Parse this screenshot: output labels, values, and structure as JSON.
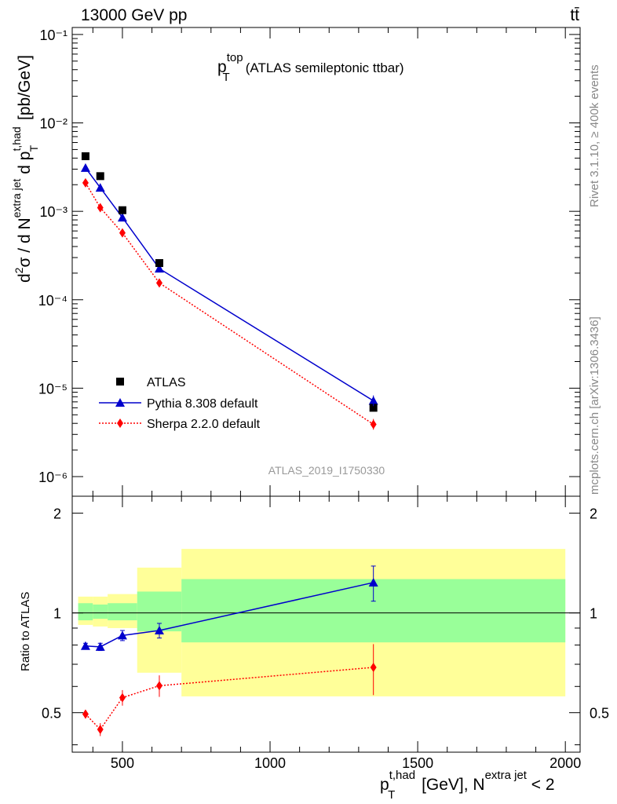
{
  "header": {
    "energy_label": "13000 GeV pp",
    "process_label": "tt̄",
    "rivet_label": "Rivet 3.1.10, ≥ 400k events",
    "mcplots_label": "mcplots.cern.ch [arXiv:1306.3436]"
  },
  "colors": {
    "data": "#000000",
    "pythia": "#0000cc",
    "sherpa": "#ff0000",
    "band_inner": "#99ff99",
    "band_outer": "#ffff99"
  },
  "chart_data": [
    {
      "type": "scatter",
      "panel": "main",
      "title_main": "p",
      "title_sub": "T",
      "title_sup": "top",
      "title_rest": "(ATLAS semileptonic ttbar)",
      "watermark": "ATLAS_2019_I1750330",
      "ylabel": "d²σ / d N^extra jet d p_T^t,had [pb/GeV]",
      "yscale": "log",
      "ylim": [
        6e-07,
        0.12
      ],
      "xlim": [
        330,
        2050
      ],
      "ytick_labels": [
        "10⁻¹",
        "10⁻²",
        "10⁻³",
        "10⁻⁴",
        "10⁻⁵",
        "10⁻⁶"
      ],
      "legend_position": "bottom-left",
      "x": [
        375,
        425,
        500,
        625,
        1350
      ],
      "series": [
        {
          "name": "ATLAS",
          "marker": "square",
          "y": [
            0.0042,
            0.0025,
            0.00103,
            0.00026,
            6e-06
          ]
        },
        {
          "name": "Pythia 8.308 default",
          "marker": "triangle",
          "y": [
            0.0031,
            0.00185,
            0.00085,
            0.000225,
            7.2e-06
          ]
        },
        {
          "name": "Sherpa 2.2.0 default",
          "marker": "diamond",
          "y": [
            0.0021,
            0.0011,
            0.00057,
            0.000155,
            3.9e-06
          ]
        }
      ]
    },
    {
      "type": "scatter",
      "panel": "ratio",
      "ylabel": "Ratio to ATLAS",
      "ylim": [
        0.38,
        2.25
      ],
      "xlim": [
        330,
        2050
      ],
      "ytick_labels": [
        "2",
        "1",
        "0.5"
      ],
      "xtick_labels": [
        "500",
        "1000",
        "1500",
        "2000"
      ],
      "xlabel": "p_T^t,had [GeV], N^extra jet < 2",
      "reference": 1,
      "bands": [
        {
          "x": [
            350,
            400
          ],
          "inner": [
            0.95,
            1.07
          ],
          "outer": [
            0.92,
            1.12
          ]
        },
        {
          "x": [
            400,
            450
          ],
          "inner": [
            0.96,
            1.06
          ],
          "outer": [
            0.91,
            1.12
          ]
        },
        {
          "x": [
            450,
            550
          ],
          "inner": [
            0.95,
            1.07
          ],
          "outer": [
            0.9,
            1.14
          ]
        },
        {
          "x": [
            550,
            700
          ],
          "inner": [
            0.88,
            1.16
          ],
          "outer": [
            0.66,
            1.37
          ]
        },
        {
          "x": [
            700,
            2000
          ],
          "inner": [
            0.815,
            1.265
          ],
          "outer": [
            0.56,
            1.56
          ]
        }
      ],
      "x": [
        375,
        425,
        500,
        625,
        1350
      ],
      "series": [
        {
          "name": "Pythia 8.308 default",
          "y": [
            0.795,
            0.79,
            0.855,
            0.885,
            1.235
          ],
          "err": [
            0.015,
            0.02,
            0.03,
            0.045,
            0.15
          ]
        },
        {
          "name": "Sherpa 2.2.0 default",
          "y": [
            0.495,
            0.445,
            0.555,
            0.603,
            0.685
          ],
          "err": [
            0.015,
            0.02,
            0.03,
            0.045,
            0.12
          ]
        }
      ]
    }
  ]
}
